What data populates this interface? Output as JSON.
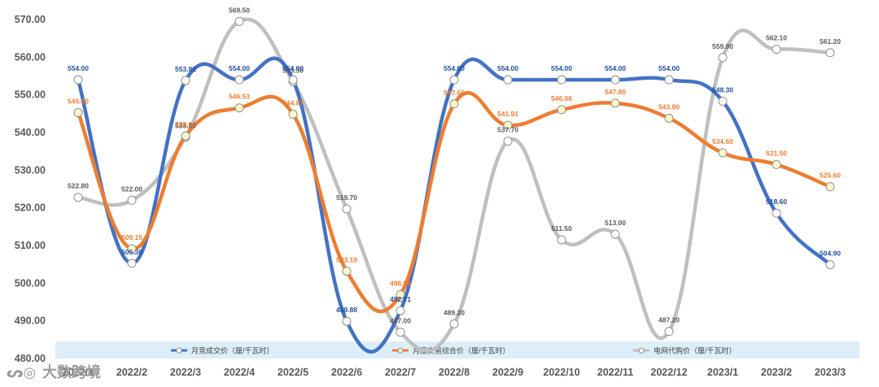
{
  "chart_data": {
    "type": "line",
    "categories": [
      "2022/1",
      "2022/2",
      "2022/3",
      "2022/4",
      "2022/5",
      "2022/6",
      "2022/7",
      "2022/8",
      "2022/9",
      "2022/10",
      "2022/11",
      "2022/12",
      "2023/1",
      "2023/2",
      "2023/3"
    ],
    "ylim": [
      480,
      570
    ],
    "yticks": [
      "480.00",
      "490.00",
      "500.00",
      "510.00",
      "520.00",
      "530.00",
      "540.00",
      "550.00",
      "560.00",
      "570.00"
    ],
    "legend_position": "bottom",
    "series": [
      {
        "name": "月竞成交价（厘/千瓦时）",
        "color": "#4472c4",
        "label_color": "#1f4e9c",
        "values": [
          554.0,
          505.3,
          553.82,
          554.0,
          554.0,
          489.88,
          492.71,
          554.0,
          554.0,
          554.0,
          554.0,
          554.0,
          548.3,
          518.6,
          504.9
        ],
        "labels": [
          "554.00",
          "505.30",
          "553.82",
          "554.00",
          "554.00",
          "489.88",
          "492.71",
          "554.00",
          "554.00",
          "554.00",
          "554.00",
          "554.00",
          "548.30",
          "518.60",
          "504.90"
        ]
      },
      {
        "name": "月度交易综合价（厘/千瓦时）",
        "color": "#ed7d31",
        "label_color": "#ed7d31",
        "values": [
          545.3,
          509.15,
          539.12,
          546.53,
          544.87,
          503.19,
          496.98,
          547.6,
          541.91,
          546.06,
          547.8,
          543.8,
          534.6,
          531.5,
          525.6
        ],
        "labels": [
          "545.30",
          "509.15",
          "539.12",
          "546.53",
          "544.87",
          "503.19",
          "496.98",
          "547.60",
          "541.91",
          "546.06",
          "547.80",
          "543.80",
          "534.60",
          "531.50",
          "525.60"
        ]
      },
      {
        "name": "电网代购价（厘/千瓦时）",
        "color": "#bfbfbf",
        "label_color": "#595959",
        "values": [
          522.8,
          522.0,
          538.8,
          569.5,
          553.5,
          519.7,
          487.0,
          489.2,
          537.7,
          511.5,
          513.0,
          487.2,
          559.9,
          562.1,
          561.2
        ],
        "labels": [
          "522.80",
          "522.00",
          "538.80",
          "569.50",
          "553.50",
          "519.70",
          "487.00",
          "489.20",
          "537.70",
          "511.50",
          "513.00",
          "487.20",
          "559.90",
          "562.10",
          "561.20"
        ]
      }
    ]
  },
  "watermark": "大数跨境"
}
